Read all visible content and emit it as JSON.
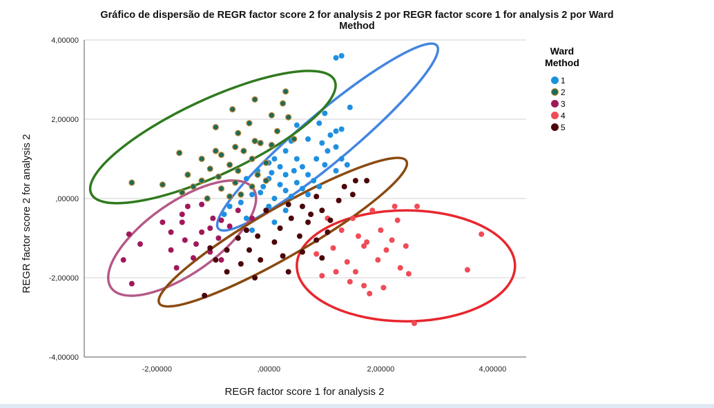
{
  "chart_data": {
    "type": "scatter",
    "title_line1": "Gráfico de dispersão de REGR factor score   2 for analysis 2 por REGR factor score   1 for analysis 2 por Ward",
    "title_line2": "Method",
    "xlabel": "REGR factor score   1 for analysis 2",
    "ylabel": "REGR factor score   2 for analysis 2",
    "xlim": [
      -3.3,
      4.6
    ],
    "ylim": [
      -4.0,
      4.0
    ],
    "x_ticks": [
      -2,
      0,
      2,
      4
    ],
    "x_tick_labels": [
      "-2,00000",
      ",00000",
      "2,00000",
      "4,00000"
    ],
    "y_ticks": [
      -4,
      -2,
      0,
      2,
      4
    ],
    "y_tick_labels": [
      "-4,00000",
      "-2,00000",
      ",00000",
      "2,00000",
      "4,00000"
    ],
    "grid": "horizontal",
    "legend": {
      "title_line1": "Ward",
      "title_line2": "Method",
      "position": "right"
    },
    "series": [
      {
        "name": "1",
        "color": "#1e90e0",
        "points": [
          [
            1.3,
            3.6
          ],
          [
            1.2,
            3.55
          ],
          [
            1.45,
            2.3
          ],
          [
            1.0,
            2.15
          ],
          [
            0.5,
            1.85
          ],
          [
            0.9,
            1.9
          ],
          [
            1.3,
            1.75
          ],
          [
            1.1,
            1.6
          ],
          [
            1.2,
            1.7
          ],
          [
            0.95,
            1.4
          ],
          [
            0.7,
            1.5
          ],
          [
            0.4,
            1.45
          ],
          [
            1.05,
            1.2
          ],
          [
            1.2,
            1.3
          ],
          [
            0.3,
            1.2
          ],
          [
            0.5,
            1.0
          ],
          [
            0.85,
            1.0
          ],
          [
            1.3,
            1.0
          ],
          [
            0.1,
            1.0
          ],
          [
            0.0,
            0.9
          ],
          [
            0.2,
            0.8
          ],
          [
            0.6,
            0.8
          ],
          [
            1.0,
            0.85
          ],
          [
            1.4,
            0.85
          ],
          [
            -0.2,
            0.7
          ],
          [
            0.3,
            0.6
          ],
          [
            0.7,
            0.6
          ],
          [
            1.2,
            0.7
          ],
          [
            -0.4,
            0.5
          ],
          [
            0.0,
            0.5
          ],
          [
            0.5,
            0.4
          ],
          [
            0.8,
            0.45
          ],
          [
            -0.1,
            0.3
          ],
          [
            0.3,
            0.2
          ],
          [
            0.6,
            0.25
          ],
          [
            0.9,
            0.3
          ],
          [
            -0.3,
            0.1
          ],
          [
            0.1,
            0.0
          ],
          [
            0.4,
            0.05
          ],
          [
            0.7,
            0.1
          ],
          [
            -0.5,
            -0.1
          ],
          [
            0.0,
            -0.2
          ],
          [
            0.3,
            -0.3
          ],
          [
            -0.8,
            -0.4
          ],
          [
            -0.4,
            -0.5
          ],
          [
            0.1,
            -0.6
          ],
          [
            -0.3,
            -0.8
          ],
          [
            -0.7,
            -0.2
          ],
          [
            0.2,
            0.35
          ],
          [
            0.45,
            0.7
          ],
          [
            -0.15,
            0.15
          ],
          [
            0.05,
            0.65
          ]
        ]
      },
      {
        "name": "2",
        "color": "#1e6b58",
        "points": [
          [
            0.3,
            2.7
          ],
          [
            -0.25,
            2.5
          ],
          [
            0.25,
            2.4
          ],
          [
            -0.65,
            2.25
          ],
          [
            0.05,
            2.1
          ],
          [
            0.35,
            2.05
          ],
          [
            -0.35,
            1.9
          ],
          [
            -0.95,
            1.8
          ],
          [
            0.15,
            1.7
          ],
          [
            -0.55,
            1.65
          ],
          [
            0.45,
            1.5
          ],
          [
            -0.25,
            1.45
          ],
          [
            -0.15,
            1.4
          ],
          [
            0.05,
            1.35
          ],
          [
            -0.6,
            1.3
          ],
          [
            -0.95,
            1.2
          ],
          [
            -0.45,
            1.2
          ],
          [
            -1.6,
            1.15
          ],
          [
            -0.85,
            1.1
          ],
          [
            -1.2,
            1.0
          ],
          [
            -0.3,
            1.0
          ],
          [
            -0.05,
            0.9
          ],
          [
            -0.7,
            0.85
          ],
          [
            -1.05,
            0.75
          ],
          [
            -1.45,
            0.6
          ],
          [
            -0.55,
            0.7
          ],
          [
            -0.2,
            0.6
          ],
          [
            -0.9,
            0.55
          ],
          [
            -1.2,
            0.45
          ],
          [
            -0.6,
            0.4
          ],
          [
            -1.9,
            0.35
          ],
          [
            -2.45,
            0.4
          ],
          [
            -1.35,
            0.3
          ],
          [
            -0.85,
            0.25
          ],
          [
            -1.55,
            0.15
          ],
          [
            -0.3,
            0.3
          ],
          [
            -1.1,
            0.0
          ],
          [
            -0.5,
            0.1
          ],
          [
            -0.05,
            0.45
          ],
          [
            -0.7,
            0.05
          ]
        ]
      },
      {
        "name": "3",
        "color": "#a0185a",
        "points": [
          [
            -2.5,
            -0.9
          ],
          [
            -2.6,
            -1.55
          ],
          [
            -2.3,
            -1.15
          ],
          [
            -2.45,
            -2.15
          ],
          [
            -1.55,
            -0.6
          ],
          [
            -1.5,
            -1.05
          ],
          [
            -1.75,
            -1.3
          ],
          [
            -1.9,
            -0.6
          ],
          [
            -1.2,
            -0.85
          ],
          [
            -1.0,
            -0.5
          ],
          [
            -0.9,
            -1.0
          ],
          [
            -1.35,
            -1.5
          ],
          [
            -1.05,
            -1.35
          ],
          [
            -1.45,
            -0.2
          ],
          [
            -0.7,
            -0.7
          ],
          [
            -1.65,
            -1.75
          ],
          [
            -1.2,
            -0.15
          ],
          [
            -0.85,
            -0.55
          ],
          [
            -1.55,
            -0.4
          ],
          [
            -0.55,
            -0.3
          ],
          [
            -0.3,
            -0.5
          ],
          [
            -1.3,
            -1.15
          ],
          [
            -0.85,
            -1.55
          ],
          [
            -1.05,
            -0.75
          ],
          [
            -1.75,
            -0.85
          ]
        ]
      },
      {
        "name": "4",
        "color": "#f04b57",
        "points": [
          [
            3.8,
            -0.9
          ],
          [
            2.65,
            -0.2
          ],
          [
            2.25,
            -0.2
          ],
          [
            2.6,
            -3.15
          ],
          [
            3.55,
            -1.8
          ],
          [
            2.45,
            -1.2
          ],
          [
            2.35,
            -1.75
          ],
          [
            2.0,
            -0.8
          ],
          [
            1.85,
            -0.3
          ],
          [
            1.5,
            -0.5
          ],
          [
            1.7,
            -1.2
          ],
          [
            2.1,
            -1.3
          ],
          [
            1.3,
            -0.8
          ],
          [
            1.4,
            -1.6
          ],
          [
            1.55,
            -1.85
          ],
          [
            1.7,
            -2.2
          ],
          [
            1.8,
            -2.4
          ],
          [
            2.05,
            -2.25
          ],
          [
            1.2,
            -1.85
          ],
          [
            0.95,
            -1.95
          ],
          [
            1.15,
            -1.25
          ],
          [
            1.6,
            -0.95
          ],
          [
            2.2,
            -1.05
          ],
          [
            1.95,
            -1.55
          ],
          [
            1.45,
            -2.1
          ],
          [
            2.5,
            -1.9
          ],
          [
            1.75,
            -1.1
          ],
          [
            0.85,
            -1.4
          ],
          [
            1.05,
            -0.5
          ],
          [
            2.3,
            -0.55
          ]
        ]
      },
      {
        "name": "5",
        "color": "#4a0508",
        "points": [
          [
            1.75,
            0.45
          ],
          [
            1.55,
            0.45
          ],
          [
            1.35,
            0.3
          ],
          [
            1.5,
            0.1
          ],
          [
            1.25,
            -0.05
          ],
          [
            0.85,
            0.05
          ],
          [
            0.6,
            -0.2
          ],
          [
            0.95,
            -0.3
          ],
          [
            1.1,
            -0.55
          ],
          [
            0.7,
            -0.6
          ],
          [
            0.4,
            -0.5
          ],
          [
            0.2,
            -0.75
          ],
          [
            0.55,
            -0.95
          ],
          [
            0.85,
            -1.05
          ],
          [
            0.1,
            -1.1
          ],
          [
            -0.2,
            -0.95
          ],
          [
            -0.55,
            -1.0
          ],
          [
            -0.35,
            -1.3
          ],
          [
            -0.75,
            -1.3
          ],
          [
            -1.05,
            -1.25
          ],
          [
            -0.5,
            -1.65
          ],
          [
            -0.15,
            -1.55
          ],
          [
            0.25,
            -1.45
          ],
          [
            0.35,
            -1.85
          ],
          [
            -0.25,
            -2.0
          ],
          [
            -0.75,
            -1.85
          ],
          [
            -1.15,
            -2.45
          ],
          [
            -0.95,
            -1.55
          ],
          [
            0.6,
            -1.35
          ],
          [
            0.95,
            -1.5
          ],
          [
            -0.05,
            -0.3
          ],
          [
            0.35,
            -0.15
          ],
          [
            1.05,
            -0.85
          ],
          [
            -0.4,
            -0.8
          ],
          [
            0.75,
            -0.4
          ]
        ]
      }
    ],
    "ellipses": [
      {
        "series": "1",
        "color": "#4485e0",
        "cx": 1.05,
        "cy": 1.55,
        "rx": 2.55,
        "ry": 0.62,
        "angle_deg": 40
      },
      {
        "series": "2",
        "color": "#2f7a1e",
        "cx": -1.0,
        "cy": 1.55,
        "rx": 2.4,
        "ry": 0.95,
        "angle_deg": 25
      },
      {
        "series": "3",
        "color": "#b45a88",
        "cx": -1.55,
        "cy": -1.0,
        "rx": 1.55,
        "ry": 0.9,
        "angle_deg": 35
      },
      {
        "series": "4",
        "color": "#e8262e",
        "cx": 2.45,
        "cy": -1.7,
        "rx": 1.95,
        "ry": 1.4,
        "angle_deg": 0
      },
      {
        "series": "5",
        "color": "#8a4a10",
        "cx": 0.25,
        "cy": -0.85,
        "rx": 2.55,
        "ry": 0.62,
        "angle_deg": 30
      }
    ]
  }
}
